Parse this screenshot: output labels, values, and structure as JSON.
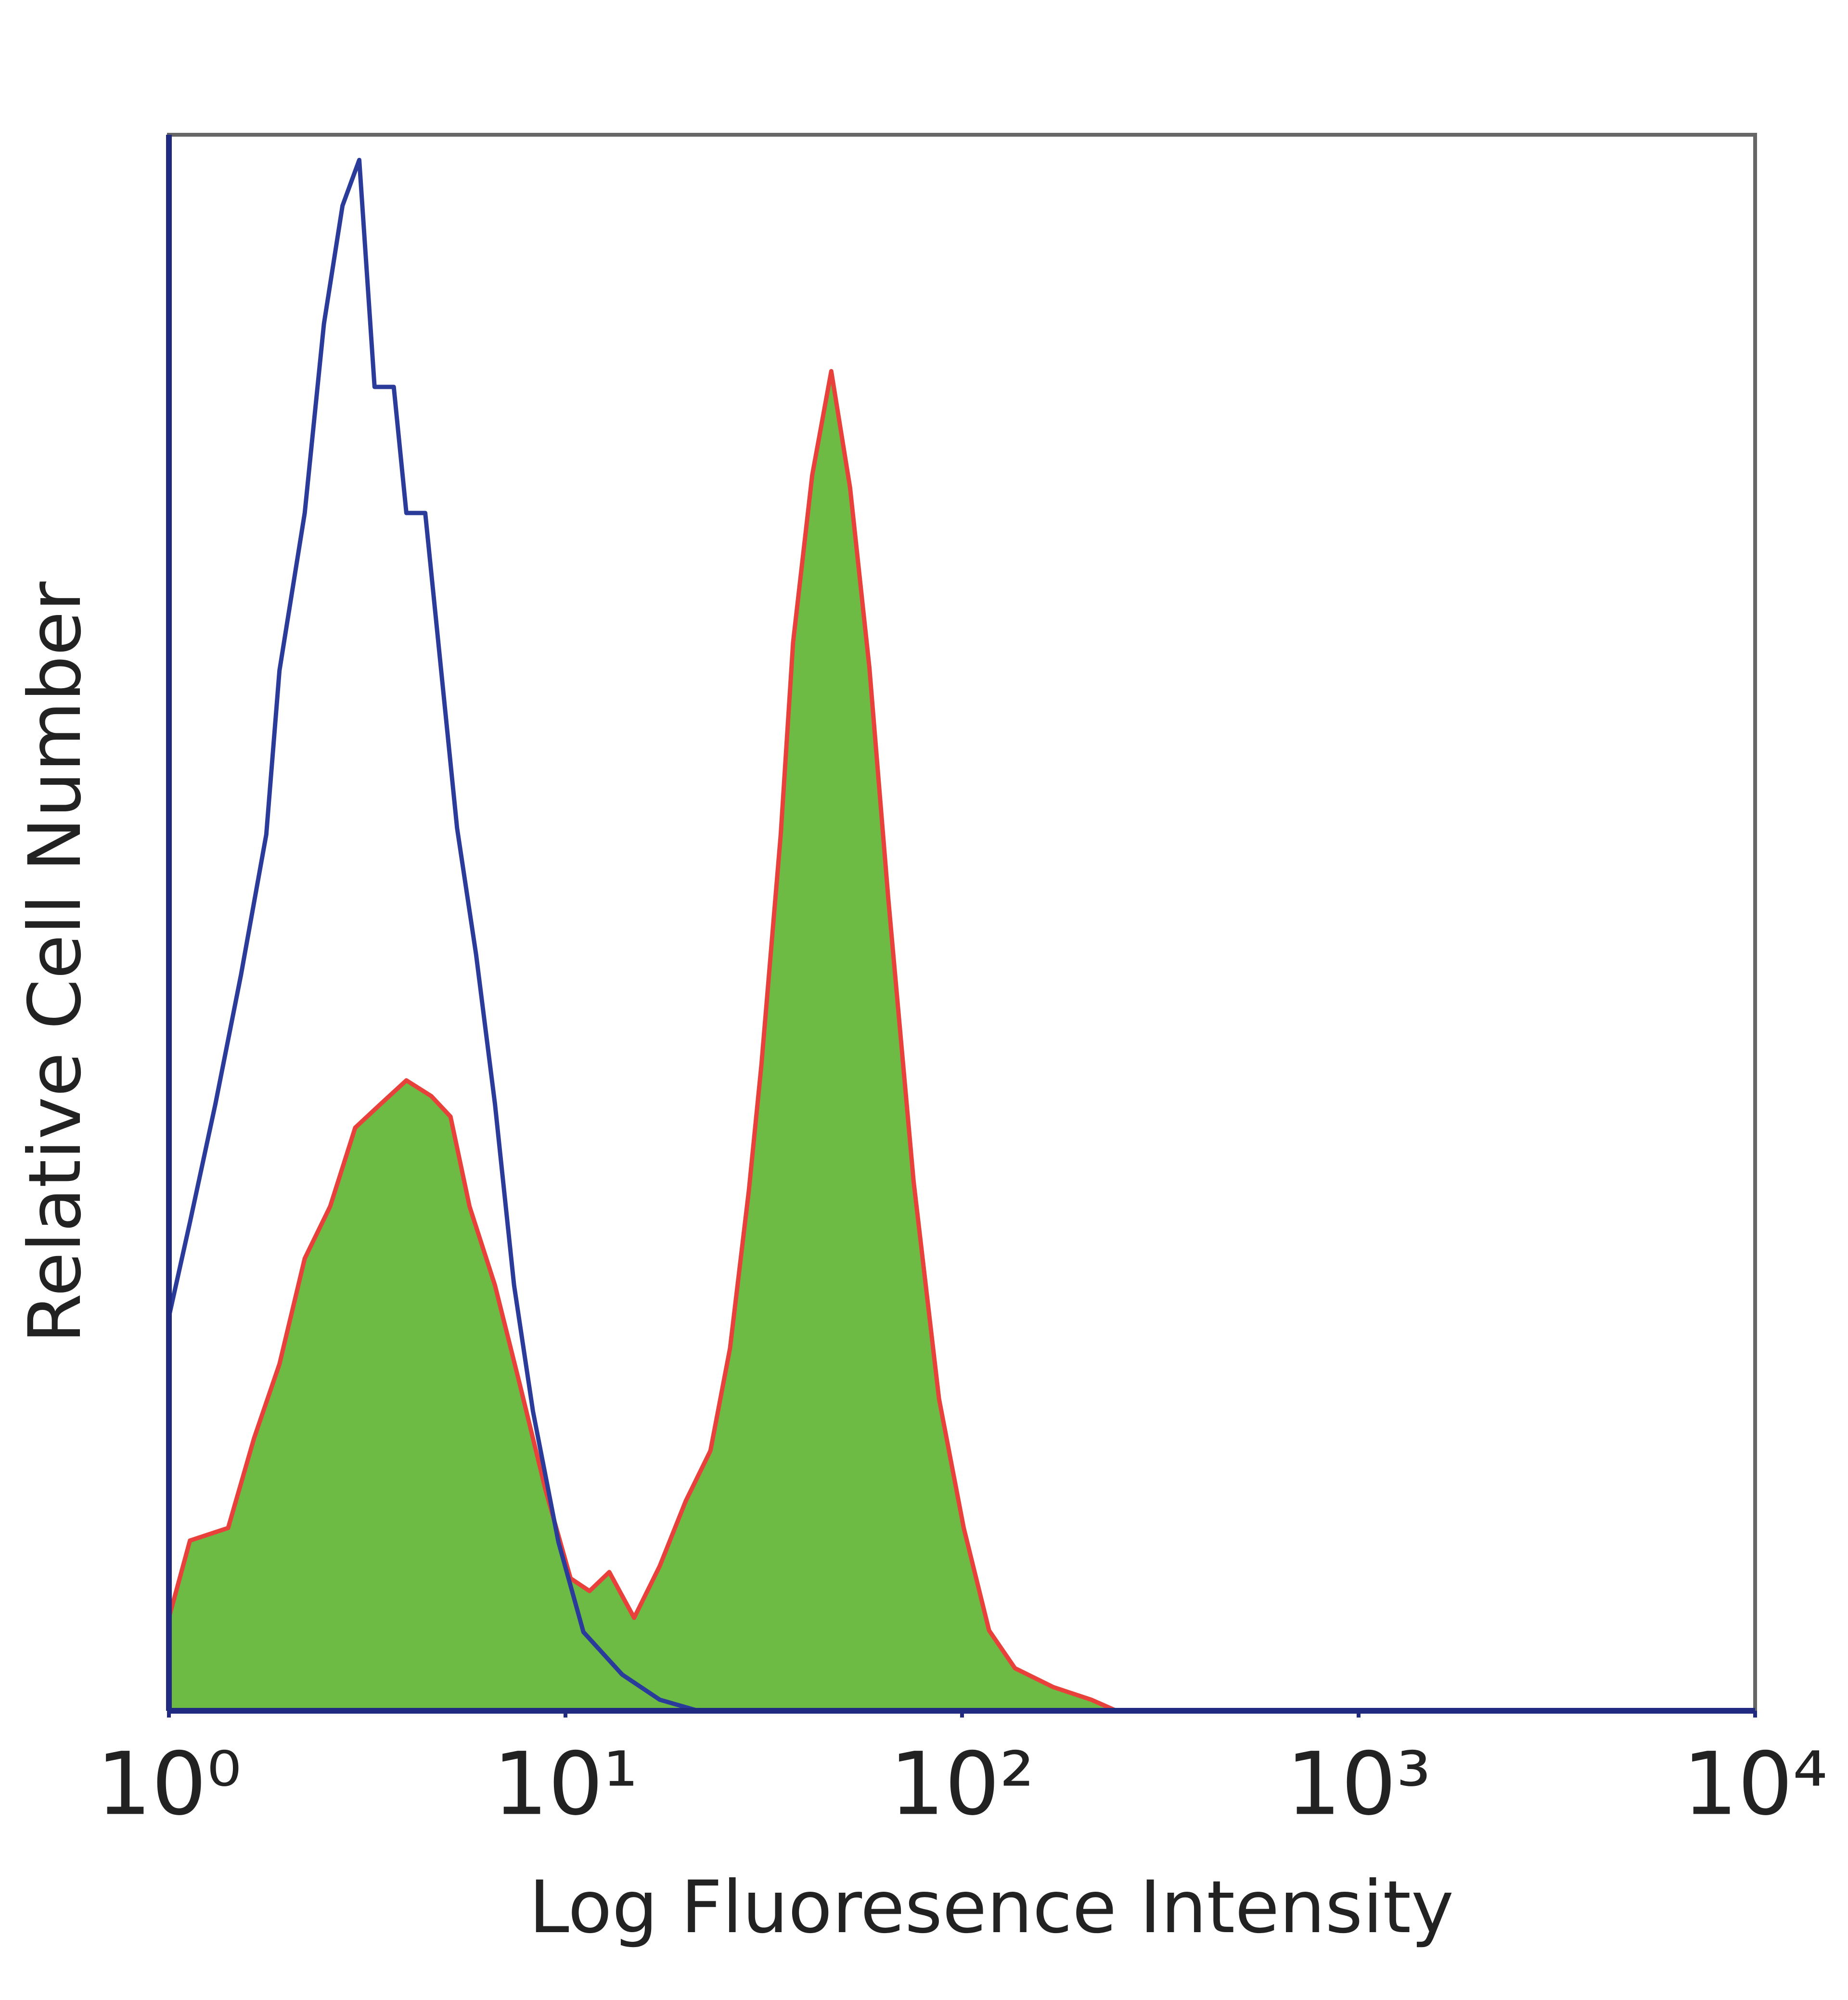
{
  "chart_data": {
    "type": "line",
    "xlabel": "Log Fluoresence Intensity",
    "ylabel": "Relative Cell Number",
    "xscale": "log",
    "xlim": [
      1,
      10000
    ],
    "xticks": [
      {
        "value": 1,
        "label": "10⁰"
      },
      {
        "value": 10,
        "label": "10¹"
      },
      {
        "value": 100,
        "label": "10²"
      },
      {
        "value": 1000,
        "label": "10³"
      },
      {
        "value": 10000,
        "label": "10⁴"
      }
    ],
    "ylim": [
      0,
      100
    ],
    "series": [
      {
        "color": "#e8413c",
        "fill": "#6dbb45",
        "x": [
          1,
          1.13,
          1.41,
          1.64,
          1.9,
          2.2,
          2.55,
          2.95,
          3.42,
          3.97,
          4.59,
          5.13,
          5.73,
          6.64,
          7.69,
          8.91,
          10.3,
          11.5,
          12.9,
          14.9,
          17.3,
          20.1,
          23.2,
          26.0,
          29.0,
          31.2,
          34.9,
          37.5,
          41.9,
          46.8,
          52.2,
          58.4,
          65.2,
          75.5,
          87.5,
          101,
          117,
          136,
          170,
          212,
          245
        ],
        "values": [
          5.9,
          10.8,
          11.6,
          17.3,
          22,
          28.7,
          32,
          37,
          38.5,
          40,
          39,
          37.7,
          32,
          27,
          20.6,
          14,
          8.4,
          7.6,
          8.8,
          5.9,
          9.2,
          13.3,
          16.5,
          23,
          33,
          41,
          55.6,
          67.8,
          78.4,
          85,
          77.6,
          66.2,
          51.5,
          33.6,
          19.8,
          11.6,
          5.1,
          2.7,
          1.5,
          0.7,
          0
        ]
      },
      {
        "color": "#2a3b9a",
        "x": [
          1,
          1.13,
          1.31,
          1.52,
          1.76,
          1.9,
          2.2,
          2.46,
          2.74,
          3.02,
          3.3,
          3.69,
          3.97,
          4.43,
          4.77,
          5.33,
          5.95,
          6.64,
          7.42,
          8.28,
          9.6,
          11.1,
          13.9,
          17.3,
          21.6
        ],
        "values": [
          25,
          31,
          38.5,
          46.7,
          55.6,
          66,
          76,
          88,
          95.5,
          98.4,
          84,
          84,
          76,
          76,
          68,
          56,
          48,
          38.5,
          27,
          19,
          10.7,
          5,
          2.3,
          0.7,
          0
        ]
      }
    ]
  }
}
